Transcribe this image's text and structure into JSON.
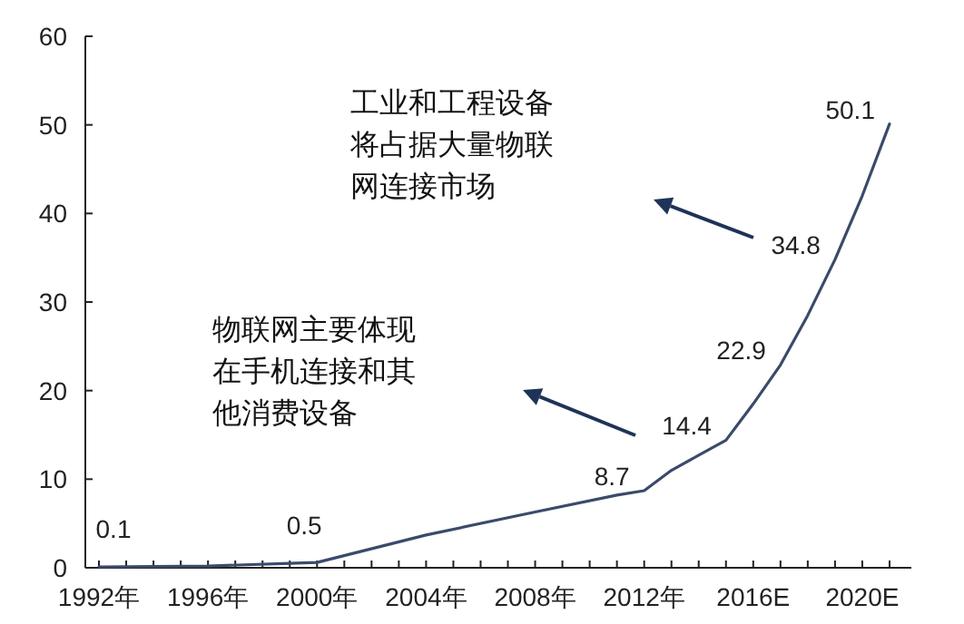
{
  "chart_data": {
    "type": "line",
    "xlim": [
      1991.5,
      2021.8
    ],
    "xticks": [
      {
        "value": 1992,
        "label": "1992年"
      },
      {
        "value": 1993,
        "label": null
      },
      {
        "value": 1994,
        "label": null
      },
      {
        "value": 1995,
        "label": null
      },
      {
        "value": 1996,
        "label": "1996年"
      },
      {
        "value": 1997,
        "label": null
      },
      {
        "value": 1998,
        "label": null
      },
      {
        "value": 1999,
        "label": null
      },
      {
        "value": 2000,
        "label": "2000年"
      },
      {
        "value": 2001,
        "label": null
      },
      {
        "value": 2002,
        "label": null
      },
      {
        "value": 2003,
        "label": null
      },
      {
        "value": 2004,
        "label": "2004年"
      },
      {
        "value": 2005,
        "label": null
      },
      {
        "value": 2006,
        "label": null
      },
      {
        "value": 2007,
        "label": null
      },
      {
        "value": 2008,
        "label": "2008年"
      },
      {
        "value": 2009,
        "label": null
      },
      {
        "value": 2010,
        "label": null
      },
      {
        "value": 2011,
        "label": null
      },
      {
        "value": 2012,
        "label": "2012年"
      },
      {
        "value": 2013,
        "label": null
      },
      {
        "value": 2014,
        "label": null
      },
      {
        "value": 2015,
        "label": null
      },
      {
        "value": 2016,
        "label": "2016E"
      },
      {
        "value": 2017,
        "label": null
      },
      {
        "value": 2018,
        "label": null
      },
      {
        "value": 2019,
        "label": null
      },
      {
        "value": 2020,
        "label": "2020E"
      },
      {
        "value": 2021,
        "label": null
      }
    ],
    "ylim": [
      0,
      60
    ],
    "yticks": [
      0,
      10,
      20,
      30,
      40,
      50,
      60
    ],
    "grid": false,
    "marker": "none",
    "line_style": "solid",
    "x": [
      1992,
      1996,
      1999,
      2000,
      2004,
      2008,
      2011,
      2012,
      2013,
      2014,
      2015,
      2016,
      2017,
      2018,
      2019,
      2020,
      2021
    ],
    "series": [
      {
        "color": "#3b4a6b",
        "values": [
          0.1,
          0.2,
          0.5,
          0.6,
          3.7,
          6.3,
          8.2,
          8.7,
          11,
          12.7,
          14.4,
          18.5,
          22.9,
          28.5,
          34.8,
          42,
          50.1
        ],
        "value_labels": [
          "0.1",
          null,
          "0.5",
          null,
          null,
          null,
          null,
          "8.7",
          null,
          null,
          "14.4",
          null,
          "22.9",
          null,
          "34.8",
          null,
          "50.1"
        ]
      }
    ],
    "annotations": [
      "工业和工程设备将占据大量物联网连接市场",
      "物联网主要体现在手机连接和其他消费设备"
    ]
  }
}
